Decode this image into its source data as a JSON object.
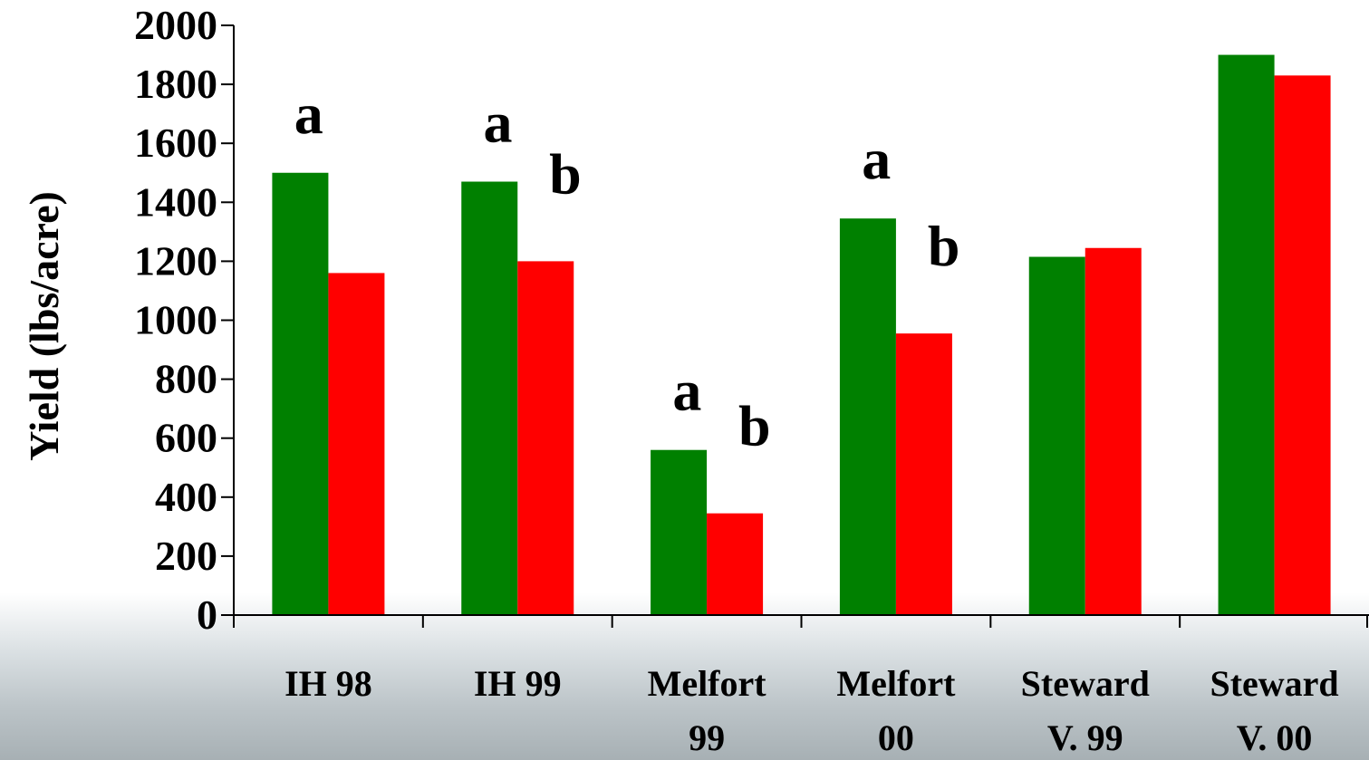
{
  "chart_data": {
    "type": "bar",
    "title": "",
    "xlabel": "",
    "ylabel": "Yield (lbs/acre)",
    "ylim": [
      0,
      2000
    ],
    "yticks": [
      "0",
      "200",
      "400",
      "600",
      "800",
      "1000",
      "1200",
      "1400",
      "1600",
      "1800",
      "2000"
    ],
    "grid": false,
    "legend": "none",
    "categories": [
      [
        "IH 98"
      ],
      [
        "IH 99"
      ],
      [
        "Melfort",
        "99"
      ],
      [
        "Melfort",
        "00"
      ],
      [
        "Steward",
        "V. 99"
      ],
      [
        "Steward",
        "V. 00"
      ]
    ],
    "series": [
      {
        "color": "#008000",
        "values": [
          1500,
          1470,
          560,
          1345,
          1215,
          1900
        ]
      },
      {
        "color": "#ff0000",
        "values": [
          1160,
          1200,
          345,
          955,
          1245,
          1830
        ]
      }
    ],
    "annotations": [
      {
        "category": 0,
        "series": 0,
        "text": "a"
      },
      {
        "category": 1,
        "series": 0,
        "text": "a"
      },
      {
        "category": 1,
        "series": 1,
        "text": "b"
      },
      {
        "category": 2,
        "series": 0,
        "text": "a"
      },
      {
        "category": 2,
        "series": 1,
        "text": "b"
      },
      {
        "category": 3,
        "series": 0,
        "text": "a"
      },
      {
        "category": 3,
        "series": 1,
        "text": "b"
      }
    ],
    "background": {
      "top": "#ffffff",
      "bottom": "#a7b0b4"
    }
  }
}
